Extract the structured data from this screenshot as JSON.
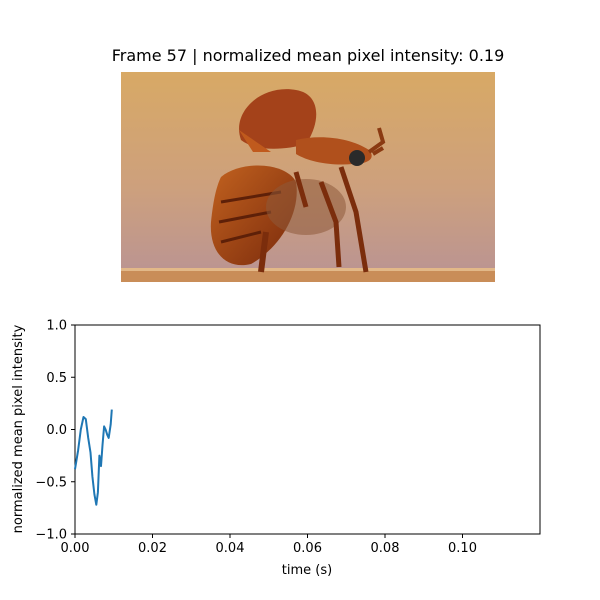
{
  "figure": {
    "title": "Frame 57 | normalized mean pixel intensity: 0.19"
  },
  "image": {
    "subject": "beetle-photo",
    "colors": {
      "bg_top": "#d7a865",
      "bg_bottom": "#c39a92",
      "ground": "#c48b55",
      "shell": "#b14f1c",
      "wing": "#9b3812"
    }
  },
  "chart_data": {
    "type": "line",
    "xlabel": "time (s)",
    "ylabel": "normalized mean pixel intensity",
    "xlim": [
      0,
      0.12
    ],
    "ylim": [
      -1.0,
      1.0
    ],
    "xticks": [
      "0.00",
      "0.02",
      "0.04",
      "0.06",
      "0.08",
      "0.10"
    ],
    "xtick_values": [
      0.0,
      0.02,
      0.04,
      0.06,
      0.08,
      0.1
    ],
    "yticks": [
      "−1.0",
      "−0.5",
      "0.0",
      "0.5",
      "1.0"
    ],
    "ytick_values": [
      -1.0,
      -0.5,
      0.0,
      0.5,
      1.0
    ],
    "grid": false,
    "series": [
      {
        "color": "#1f77b4",
        "x": [
          0.0,
          0.0008,
          0.0015,
          0.0022,
          0.0028,
          0.0034,
          0.004,
          0.0045,
          0.005,
          0.0055,
          0.0059,
          0.0063,
          0.0067,
          0.0071,
          0.0075,
          0.0079,
          0.0083,
          0.0087,
          0.0092,
          0.0095
        ],
        "y": [
          -0.38,
          -0.2,
          0.0,
          0.12,
          0.1,
          -0.08,
          -0.22,
          -0.45,
          -0.62,
          -0.72,
          -0.6,
          -0.25,
          -0.35,
          -0.15,
          0.03,
          0.0,
          -0.05,
          -0.08,
          0.05,
          0.19
        ]
      }
    ]
  }
}
